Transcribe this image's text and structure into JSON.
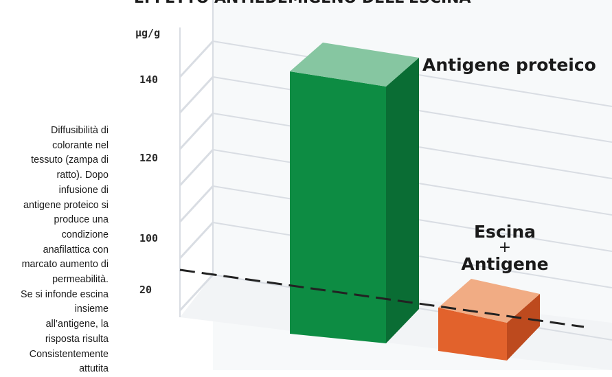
{
  "caption": "Diffusibilità di\ncolorante nel\ntessuto (zampa di\nratto). Dopo\ninfusione di\nantigene  proteico si\nproduce una\ncondizione\nanafilattica con\nmarcato aumento di\npermeabilità.\nSe si infonde  escina\ninsieme\nall’antigene, la\nrisposta risulta\nConsistentemente\nattutita",
  "chart_data": {
    "type": "bar",
    "title": "EFFETTO ANTIEDEMIGENO DELL'ESCINA",
    "ylabel": "µg/g",
    "y_ticks": [
      "140",
      "120",
      "100",
      "20"
    ],
    "y_axis_broken": true,
    "categories": [
      "Antigene proteico",
      "Escina\n+\nAntigene"
    ],
    "series": [
      {
        "values": [
          146,
          17
        ],
        "colors": {
          "Antigene proteico": "#0d8c43",
          "Escina\n+\nAntigene": "#e2622c"
        }
      }
    ],
    "reference_line": {
      "style": "dashed",
      "color": "#222222",
      "value": 18
    },
    "grid": true
  },
  "colors": {
    "green_front": "#0d8c43",
    "green_side": "#0a6d34",
    "green_top": "#86c6a1",
    "orange_front": "#e2622c",
    "orange_side": "#bd4a1e",
    "orange_top": "#f1ac84",
    "grid": "#d9dde3",
    "wall": "#e9edf1"
  }
}
